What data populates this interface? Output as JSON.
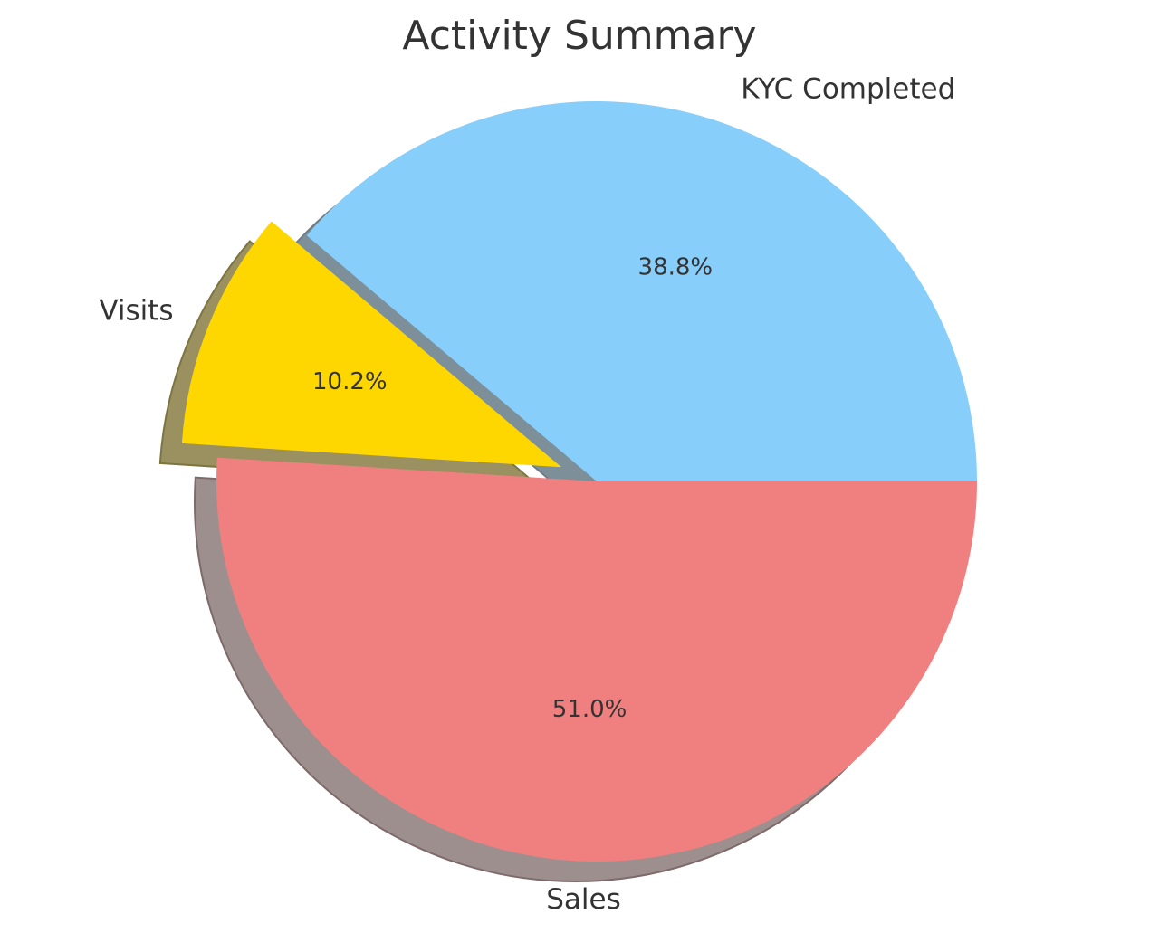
{
  "chart_data": {
    "type": "pie",
    "title": "Activity Summary",
    "categories": [
      "KYC Completed",
      "Visits",
      "Sales"
    ],
    "values": [
      38.8,
      10.2,
      51.0
    ],
    "percent_labels": [
      "38.8%",
      "10.2%",
      "51.0%"
    ],
    "colors": [
      "#87cefa",
      "#ffd700",
      "#f08080"
    ],
    "exploded": [
      false,
      true,
      false
    ],
    "shadow": true,
    "start_angle_deg": 0,
    "direction": "counterclockwise"
  }
}
